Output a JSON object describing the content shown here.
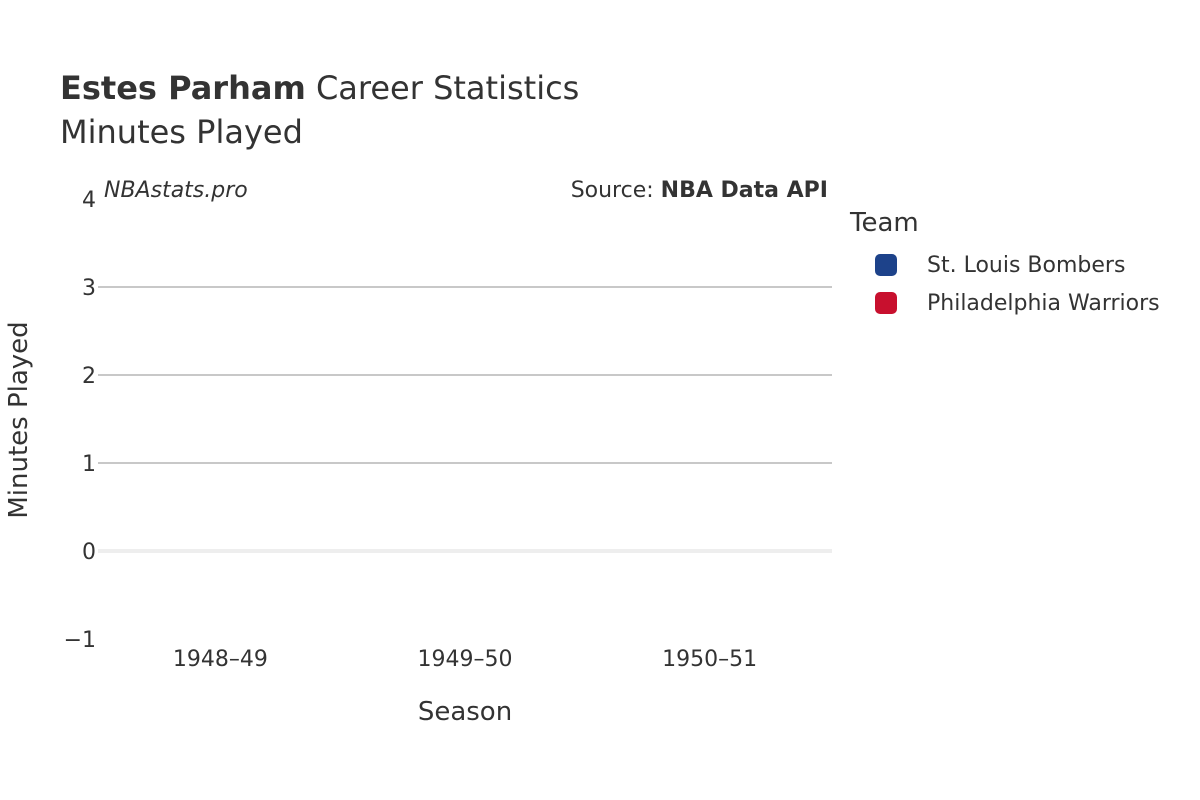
{
  "header": {
    "player_name": "Estes Parham",
    "title_rest": "Career Statistics",
    "subtitle": "Minutes Played"
  },
  "watermark": "NBAstats.pro",
  "source": {
    "prefix": "Source: ",
    "name": "NBA Data API"
  },
  "legend": {
    "title": "Team",
    "items": [
      {
        "label": "St. Louis Bombers",
        "color": "#1d428a"
      },
      {
        "label": "Philadelphia Warriors",
        "color": "#c8102e"
      }
    ]
  },
  "chart_data": {
    "type": "bar",
    "categories": [
      "1948–49",
      "1949–50",
      "1950–51"
    ],
    "series": [
      {
        "name": "St. Louis Bombers",
        "values": [
          null,
          null,
          null
        ]
      },
      {
        "name": "Philadelphia Warriors",
        "values": [
          null,
          null,
          null
        ]
      }
    ],
    "xlabel": "Season",
    "ylabel": "Minutes Played",
    "ylim": [
      -1,
      4
    ],
    "yticks": [
      -1,
      0,
      1,
      2,
      3,
      4
    ],
    "ytick_labels": [
      "−1",
      "0",
      "1",
      "2",
      "3",
      "4"
    ],
    "grid": true,
    "legend_position": "right"
  }
}
